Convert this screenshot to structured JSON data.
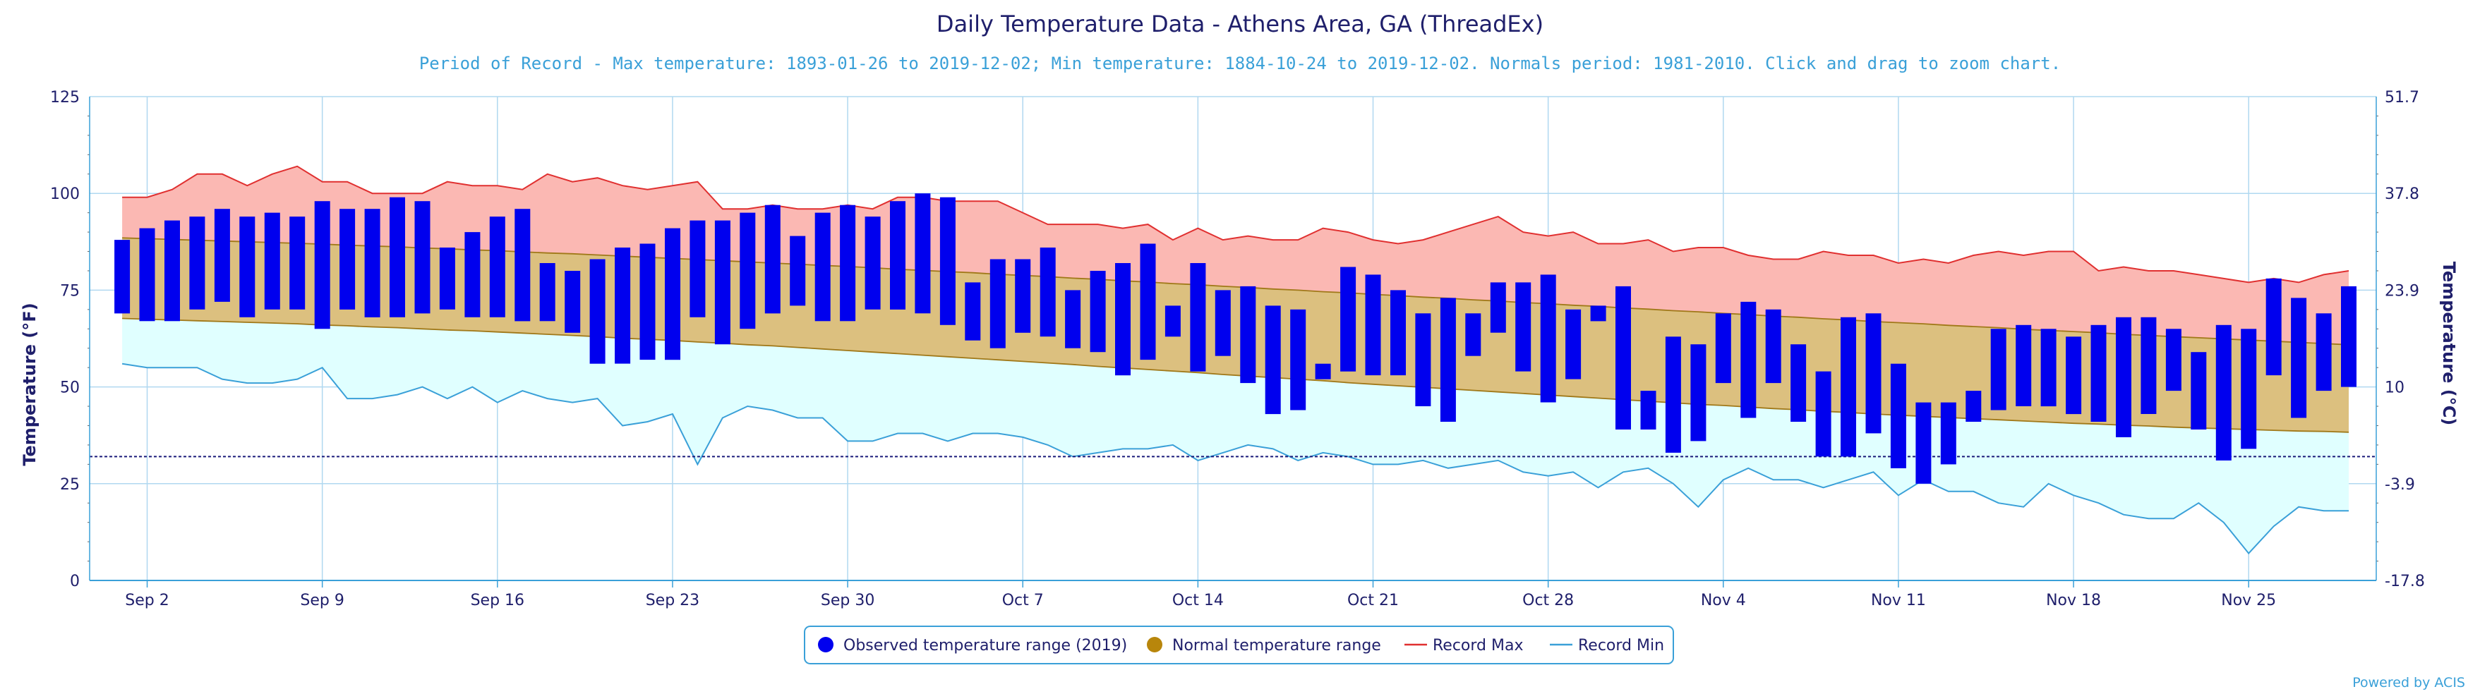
{
  "chart_data": {
    "type": "bar",
    "title": "Daily Temperature Data - Athens Area, GA (ThreadEx)",
    "subtitle": "Period of Record - Max temperature: 1893-01-26 to 2019-12-02; Min temperature: 1884-10-24 to 2019-12-02. Normals period: 1981-2010. Click and drag to zoom chart.",
    "credit": "Powered by ACIS",
    "ylabel": "Temperature (°F)",
    "ylabel_right": "Temperature (°C)",
    "ylim": [
      0,
      125
    ],
    "yticks": [
      0,
      25,
      50,
      75,
      100,
      125
    ],
    "yticks_right": [
      "-17.8",
      "-3.9",
      "10",
      "23.9",
      "37.8",
      "51.7"
    ],
    "grid": true,
    "reference_line": 32,
    "xlabels": [
      "Sep 2",
      "Sep 9",
      "Sep 16",
      "Sep 23",
      "Sep 30",
      "Oct 7",
      "Oct 14",
      "Oct 21",
      "Oct 28",
      "Nov 4",
      "Nov 11",
      "Nov 18",
      "Nov 25"
    ],
    "x_start": "2019-09-01",
    "x_end": "2019-11-30",
    "legend_position": "bottom",
    "legend": [
      {
        "label": "Observed temperature range (2019)",
        "color": "#0000ee"
      },
      {
        "label": "Normal temperature range",
        "color": "#b8860b"
      },
      {
        "label": "Record Max",
        "color": "#e03030"
      },
      {
        "label": "Record Min",
        "color": "#3aa0d8"
      }
    ],
    "observed_high": [
      88,
      91,
      93,
      94,
      96,
      94,
      95,
      94,
      98,
      96,
      96,
      99,
      98,
      86,
      90,
      94,
      96,
      82,
      80,
      83,
      86,
      87,
      91,
      93,
      93,
      95,
      97,
      89,
      95,
      97,
      94,
      98,
      100,
      99,
      77,
      83,
      83,
      86,
      75,
      80,
      82,
      87,
      71,
      82,
      75,
      76,
      71,
      70,
      56,
      81,
      79,
      75,
      69,
      73,
      69,
      77,
      77,
      79,
      70,
      71,
      76,
      49,
      63,
      61,
      69,
      72,
      70,
      61,
      54,
      68,
      69,
      56,
      46,
      46,
      49,
      65,
      66,
      65,
      63,
      66,
      68,
      68,
      65,
      59,
      66,
      65,
      78,
      73,
      69,
      76
    ],
    "observed_low": [
      69,
      67,
      67,
      70,
      72,
      68,
      70,
      70,
      65,
      70,
      68,
      68,
      69,
      70,
      68,
      68,
      67,
      67,
      64,
      56,
      56,
      57,
      57,
      68,
      61,
      65,
      69,
      71,
      67,
      67,
      70,
      70,
      69,
      66,
      62,
      60,
      64,
      63,
      60,
      59,
      53,
      57,
      63,
      54,
      58,
      51,
      43,
      44,
      52,
      54,
      53,
      53,
      45,
      41,
      58,
      64,
      54,
      46,
      52,
      67,
      39,
      39,
      33,
      36,
      51,
      42,
      51,
      41,
      32,
      32,
      38,
      29,
      25,
      30,
      41,
      44,
      45,
      45,
      43,
      41,
      37,
      43,
      49,
      39,
      31,
      34,
      53,
      42,
      49,
      50
    ],
    "normal_high": [
      88.5,
      88.3,
      88.1,
      87.9,
      87.7,
      87.5,
      87.3,
      87.1,
      86.9,
      86.6,
      86.4,
      86.2,
      85.9,
      85.7,
      85.4,
      85.2,
      84.9,
      84.6,
      84.4,
      84.1,
      83.8,
      83.5,
      83.2,
      82.9,
      82.6,
      82.3,
      82.0,
      81.7,
      81.4,
      81.1,
      80.8,
      80.4,
      80.1,
      79.8,
      79.5,
      79.1,
      78.8,
      78.5,
      78.1,
      77.8,
      77.4,
      77.1,
      76.7,
      76.4,
      76.0,
      75.7,
      75.3,
      75.0,
      74.6,
      74.3,
      73.9,
      73.6,
      73.2,
      72.9,
      72.5,
      72.2,
      71.8,
      71.5,
      71.1,
      70.8,
      70.4,
      70.1,
      69.7,
      69.4,
      69.0,
      68.7,
      68.3,
      68.0,
      67.6,
      67.3,
      66.9,
      66.6,
      66.3,
      65.9,
      65.6,
      65.3,
      64.9,
      64.6,
      64.3,
      64.0,
      63.6,
      63.3,
      63.0,
      62.7,
      62.4,
      62.1,
      61.8,
      61.5,
      61.2,
      60.9
    ],
    "normal_low": [
      67.7,
      67.5,
      67.3,
      67.1,
      66.9,
      66.7,
      66.5,
      66.3,
      66.0,
      65.8,
      65.5,
      65.3,
      65.0,
      64.7,
      64.5,
      64.2,
      63.9,
      63.6,
      63.3,
      63.0,
      62.6,
      62.3,
      62.0,
      61.6,
      61.3,
      60.9,
      60.6,
      60.2,
      59.8,
      59.4,
      59.0,
      58.6,
      58.2,
      57.8,
      57.4,
      57.0,
      56.6,
      56.2,
      55.8,
      55.3,
      54.9,
      54.5,
      54.1,
      53.7,
      53.2,
      52.8,
      52.4,
      52.0,
      51.6,
      51.1,
      50.7,
      50.3,
      49.9,
      49.5,
      49.1,
      48.7,
      48.3,
      47.9,
      47.5,
      47.1,
      46.7,
      46.3,
      45.9,
      45.5,
      45.2,
      44.8,
      44.4,
      44.1,
      43.7,
      43.4,
      43.0,
      42.7,
      42.4,
      42.1,
      41.8,
      41.5,
      41.2,
      40.9,
      40.6,
      40.4,
      40.1,
      39.9,
      39.6,
      39.4,
      39.2,
      39.0,
      38.8,
      38.6,
      38.5,
      38.3
    ],
    "record_max": [
      99,
      99,
      101,
      105,
      105,
      102,
      105,
      107,
      103,
      103,
      100,
      100,
      100,
      103,
      102,
      102,
      101,
      105,
      103,
      104,
      102,
      101,
      102,
      103,
      96,
      96,
      97,
      96,
      96,
      97,
      96,
      99,
      99,
      98,
      98,
      98,
      95,
      92,
      92,
      92,
      91,
      92,
      88,
      91,
      88,
      89,
      88,
      88,
      91,
      90,
      88,
      87,
      88,
      90,
      92,
      94,
      90,
      89,
      90,
      87,
      87,
      88,
      85,
      86,
      86,
      84,
      83,
      83,
      85,
      84,
      84,
      82,
      83,
      82,
      84,
      85,
      84,
      85,
      85,
      80,
      81,
      80,
      80,
      79,
      78,
      77,
      78,
      77,
      79,
      80
    ],
    "record_min": [
      56,
      55,
      55,
      55,
      52,
      51,
      51,
      52,
      55,
      47,
      47,
      48,
      50,
      47,
      50,
      46,
      49,
      47,
      46,
      47,
      40,
      41,
      43,
      30,
      42,
      45,
      44,
      42,
      42,
      36,
      36,
      38,
      38,
      36,
      38,
      38,
      37,
      35,
      32,
      33,
      34,
      34,
      35,
      31,
      33,
      35,
      34,
      31,
      33,
      32,
      30,
      30,
      31,
      29,
      30,
      31,
      28,
      27,
      28,
      24,
      28,
      29,
      25,
      19,
      26,
      29,
      26,
      26,
      24,
      26,
      28,
      22,
      26,
      23,
      23,
      20,
      19,
      25,
      22,
      20,
      17,
      16,
      16,
      20,
      15,
      7,
      14,
      19,
      18,
      18
    ]
  }
}
